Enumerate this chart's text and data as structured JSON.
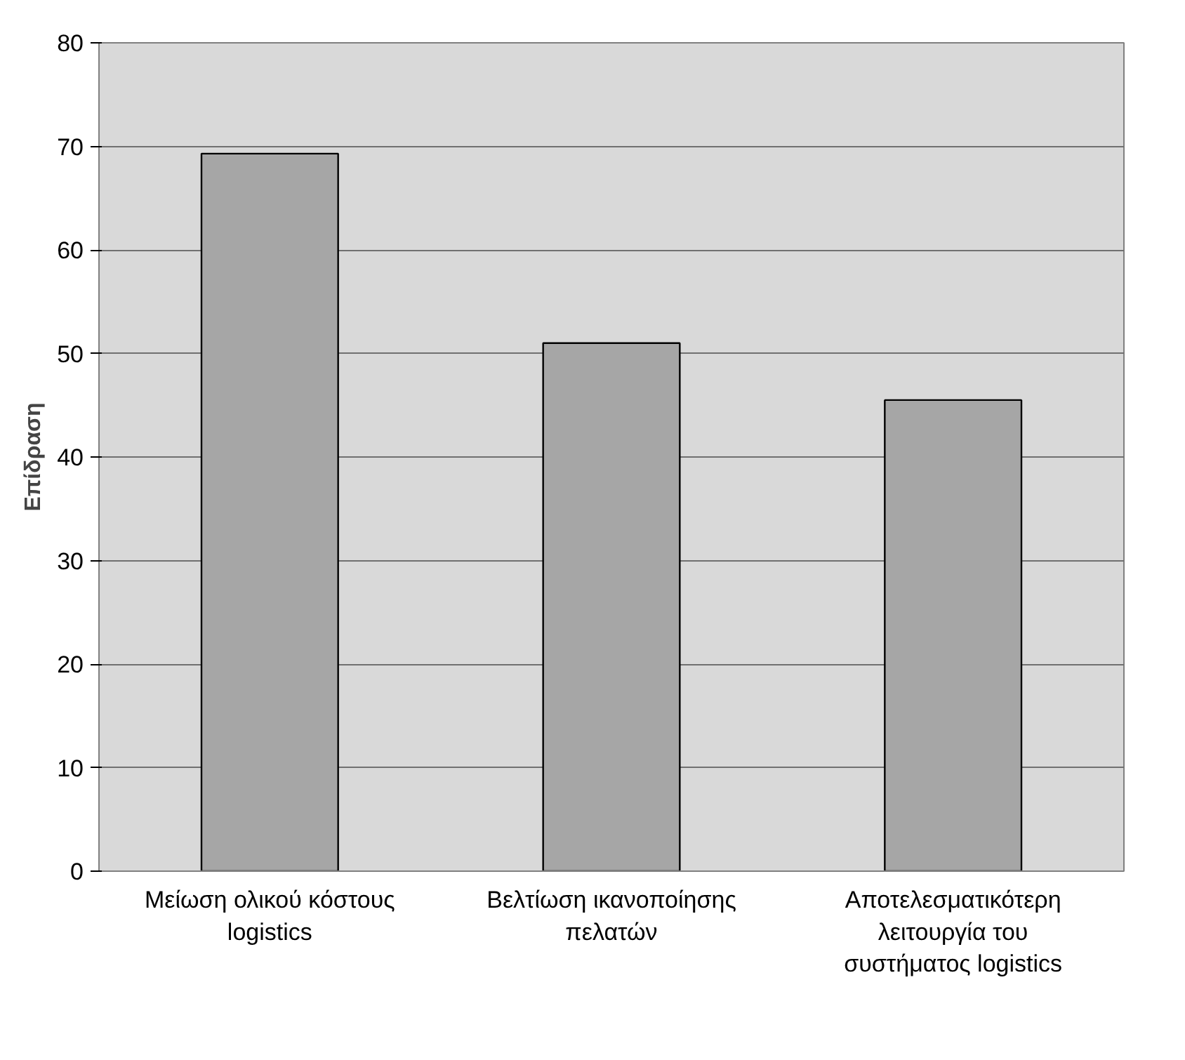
{
  "chart_data": {
    "type": "bar",
    "ylabel": "Επίδραση",
    "categories": [
      "Μείωση ολικού κόστους logistics",
      "Βελτίωση ικανοποίησης πελατών",
      "Αποτελεσματικότερη λειτουργία του συστήματος logistics"
    ],
    "values": [
      69.3,
      51,
      45.5
    ],
    "color": "#a6a6a6",
    "ylim": [
      0,
      80
    ],
    "yticks": [
      0,
      10,
      20,
      30,
      40,
      50,
      60,
      70,
      80
    ],
    "grid": "y"
  }
}
